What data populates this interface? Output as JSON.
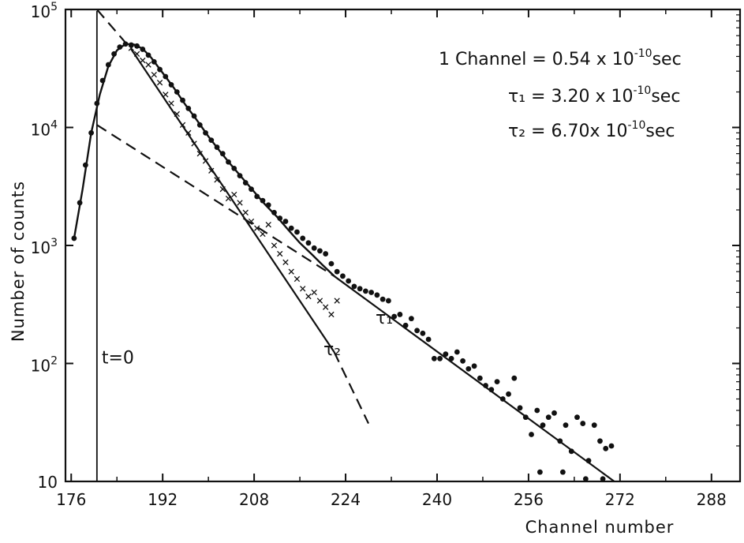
{
  "chart_data": {
    "type": "scatter",
    "xlabel": "Channel number",
    "ylabel": "Number of counts",
    "xlim": [
      175,
      293
    ],
    "ylim": [
      10,
      100000
    ],
    "log_y": true,
    "x_ticks": [
      "176",
      "192",
      "208",
      "224",
      "240",
      "256",
      "272",
      "288"
    ],
    "x_tick_values": [
      176,
      192,
      208,
      224,
      240,
      256,
      272,
      288
    ],
    "y_ticks": [
      {
        "value": 100000,
        "label": "10",
        "exp": "5"
      },
      {
        "value": 10000,
        "label": "10",
        "exp": "4"
      },
      {
        "value": 1000,
        "label": "10",
        "exp": "3"
      },
      {
        "value": 100,
        "label": "10",
        "exp": "2"
      },
      {
        "value": 10,
        "label": "10",
        "exp": ""
      }
    ],
    "t0_line": {
      "x": 180.5,
      "label": "t=0"
    },
    "annotations": {
      "channel": {
        "text": "1 Channel = 0.54 x 10",
        "exp": "-10",
        "unit": "sec"
      },
      "tau1": {
        "text": "τ₁ = 3.20 x 10",
        "exp": "-10",
        "unit": "sec"
      },
      "tau2": {
        "text": "τ₂ = 6.70x 10",
        "exp": "-10",
        "unit": "sec"
      }
    },
    "curve_labels": {
      "tau1": "τ₁",
      "tau2": "τ₂"
    },
    "series": [
      {
        "marker": "dot",
        "points": [
          [
            176.5,
            1150
          ],
          [
            177.5,
            2300
          ],
          [
            178.5,
            4800
          ],
          [
            179.5,
            9000
          ],
          [
            180.5,
            16000
          ],
          [
            181.5,
            25000
          ],
          [
            182.5,
            34000
          ],
          [
            183.5,
            42000
          ],
          [
            184.5,
            48000
          ],
          [
            185.5,
            51000
          ],
          [
            186.5,
            50000
          ],
          [
            187.5,
            49000
          ],
          [
            188.5,
            46000
          ],
          [
            189.5,
            41000
          ],
          [
            190.5,
            36000
          ],
          [
            191.5,
            31000
          ],
          [
            192.5,
            27000
          ],
          [
            193.5,
            23000
          ],
          [
            194.5,
            20000
          ],
          [
            195.5,
            17000
          ],
          [
            196.5,
            14500
          ],
          [
            197.5,
            12500
          ],
          [
            198.5,
            10500
          ],
          [
            199.5,
            9000
          ],
          [
            200.5,
            7800
          ],
          [
            201.5,
            6800
          ],
          [
            202.5,
            6000
          ],
          [
            203.5,
            5100
          ],
          [
            204.5,
            4500
          ],
          [
            205.5,
            3900
          ],
          [
            206.5,
            3400
          ],
          [
            207.5,
            3000
          ],
          [
            208.5,
            2600
          ],
          [
            209.5,
            2400
          ],
          [
            210.5,
            2200
          ],
          [
            211.5,
            1900
          ],
          [
            212.5,
            1700
          ],
          [
            213.5,
            1600
          ],
          [
            214.5,
            1400
          ],
          [
            215.5,
            1300
          ],
          [
            216.5,
            1150
          ],
          [
            217.5,
            1050
          ],
          [
            218.5,
            950
          ],
          [
            219.5,
            900
          ],
          [
            220.5,
            850
          ],
          [
            221.5,
            700
          ],
          [
            222.5,
            600
          ],
          [
            223.5,
            550
          ],
          [
            224.5,
            500
          ],
          [
            225.5,
            450
          ],
          [
            226.5,
            430
          ],
          [
            227.5,
            410
          ],
          [
            228.5,
            400
          ],
          [
            229.5,
            380
          ],
          [
            230.5,
            350
          ],
          [
            231.5,
            340
          ],
          [
            232.5,
            250
          ],
          [
            233.5,
            260
          ],
          [
            234.5,
            210
          ],
          [
            235.5,
            240
          ],
          [
            236.5,
            190
          ],
          [
            237.5,
            180
          ],
          [
            238.5,
            160
          ],
          [
            239.5,
            110
          ],
          [
            240.5,
            110
          ],
          [
            241.5,
            120
          ],
          [
            242.5,
            110
          ],
          [
            243.5,
            125
          ],
          [
            244.5,
            105
          ],
          [
            245.5,
            90
          ],
          [
            246.5,
            95
          ],
          [
            247.5,
            75
          ],
          [
            248.5,
            65
          ],
          [
            249.5,
            60
          ],
          [
            250.5,
            70
          ],
          [
            251.5,
            50
          ],
          [
            252.5,
            55
          ],
          [
            253.5,
            75
          ],
          [
            254.5,
            42
          ],
          [
            255.5,
            35
          ],
          [
            256.5,
            25
          ],
          [
            257.5,
            40
          ],
          [
            258.5,
            30
          ],
          [
            259.5,
            35
          ],
          [
            260.5,
            38
          ],
          [
            261.5,
            22
          ],
          [
            262.5,
            30
          ],
          [
            263.5,
            18
          ],
          [
            264.5,
            35
          ],
          [
            265.5,
            31
          ],
          [
            266.5,
            15
          ],
          [
            267.5,
            30
          ],
          [
            268.5,
            22
          ],
          [
            269.5,
            19
          ],
          [
            270.5,
            20
          ],
          [
            258,
            12
          ],
          [
            262,
            12
          ],
          [
            266,
            10.5
          ],
          [
            269,
            10.5
          ]
        ]
      },
      {
        "marker": "x",
        "points": [
          [
            186.5,
            47000
          ],
          [
            187.5,
            42000
          ],
          [
            188.5,
            37000
          ],
          [
            189.5,
            34000
          ],
          [
            190.5,
            28000
          ],
          [
            191.5,
            24000
          ],
          [
            192.5,
            19000
          ],
          [
            193.5,
            16000
          ],
          [
            194.5,
            13000
          ],
          [
            195.5,
            10500
          ],
          [
            196.5,
            9000
          ],
          [
            197.5,
            7300
          ],
          [
            198.5,
            6000
          ],
          [
            199.5,
            5200
          ],
          [
            200.5,
            4300
          ],
          [
            201.5,
            3600
          ],
          [
            202.5,
            3000
          ],
          [
            203.5,
            2500
          ],
          [
            204.5,
            2700
          ],
          [
            205.5,
            2300
          ],
          [
            206.5,
            1900
          ],
          [
            207.5,
            1600
          ],
          [
            208.5,
            1400
          ],
          [
            209.5,
            1250
          ],
          [
            210.5,
            1500
          ],
          [
            211.5,
            1000
          ],
          [
            212.5,
            850
          ],
          [
            213.5,
            720
          ],
          [
            214.5,
            600
          ],
          [
            215.5,
            520
          ],
          [
            216.5,
            430
          ],
          [
            217.5,
            370
          ],
          [
            218.5,
            400
          ],
          [
            219.5,
            340
          ],
          [
            220.5,
            300
          ],
          [
            221.5,
            260
          ],
          [
            222.5,
            340
          ]
        ]
      }
    ],
    "fit_lines": [
      {
        "name": "tau1",
        "style": "solid",
        "from": [
          222,
          550
        ],
        "to": [
          271,
          10
        ]
      },
      {
        "name": "tau1-extrapolated",
        "style": "dashed",
        "from": [
          180.5,
          10500
        ],
        "to": [
          222,
          550
        ]
      },
      {
        "name": "tau2",
        "style": "solid",
        "from": [
          186.5,
          46000
        ],
        "to": [
          222,
          125
        ]
      },
      {
        "name": "tau2-extrapolated-top",
        "style": "dashed",
        "from": [
          180.5,
          100000
        ],
        "to": [
          186.5,
          46000
        ]
      },
      {
        "name": "tau2-extrapolated-bottom",
        "style": "dashed",
        "from": [
          222,
          125
        ],
        "to": [
          228,
          31
        ]
      }
    ],
    "fit_curve": [
      [
        176.5,
        1150
      ],
      [
        178,
        3000
      ],
      [
        179.5,
        9000
      ],
      [
        181,
        19000
      ],
      [
        182.5,
        33000
      ],
      [
        184,
        45000
      ],
      [
        185.5,
        51000
      ],
      [
        187,
        50500
      ],
      [
        188.5,
        46500
      ],
      [
        190,
        39000
      ],
      [
        192,
        29000
      ],
      [
        194,
        21500
      ],
      [
        196,
        15500
      ],
      [
        198,
        11500
      ],
      [
        200,
        8400
      ],
      [
        202,
        6300
      ],
      [
        204,
        4800
      ],
      [
        206,
        3700
      ],
      [
        208,
        2850
      ],
      [
        210,
        2200
      ],
      [
        212,
        1750
      ],
      [
        214,
        1350
      ],
      [
        216,
        1050
      ],
      [
        218,
        850
      ],
      [
        220,
        680
      ],
      [
        222,
        550
      ]
    ]
  }
}
